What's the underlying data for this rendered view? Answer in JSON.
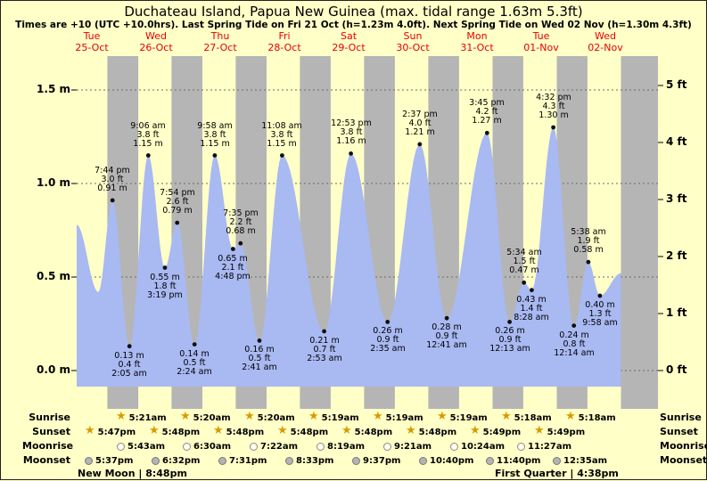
{
  "title": "Duchateau Island, Papua New Guinea (max. tidal range 1.63m 5.3ft)",
  "subtitle": "Times are +10 (UTC +10.0hrs). Last Spring Tide on Fri 21 Oct (h=1.23m 4.0ft). Next Spring Tide on Wed 02 Nov (h=1.30m 4.3ft)",
  "colors": {
    "page_bg": "#ffffc8",
    "night_band": "#b5b5b5",
    "tide_fill": "#a9b9f2",
    "day_label": "#e80000",
    "dot": "#101010",
    "star": "#d79b00"
  },
  "axes": {
    "left_unit": "m",
    "right_unit": "ft",
    "left_ticks": [
      {
        "label": "0.0 m",
        "value": 0
      },
      {
        "label": "0.5 m",
        "value": 0.5
      },
      {
        "label": "1.0 m",
        "value": 1.0
      },
      {
        "label": "1.5 m",
        "value": 1.5
      }
    ],
    "right_ticks": [
      {
        "label": "0 ft",
        "value_m": 0
      },
      {
        "label": "1 ft",
        "value_m": 0.3048
      },
      {
        "label": "2 ft",
        "value_m": 0.6096
      },
      {
        "label": "3 ft",
        "value_m": 0.9144
      },
      {
        "label": "4 ft",
        "value_m": 1.2192
      },
      {
        "label": "5 ft",
        "value_m": 1.524
      }
    ]
  },
  "days": [
    {
      "weekday": "Tue",
      "date": "25-Oct"
    },
    {
      "weekday": "Wed",
      "date": "26-Oct"
    },
    {
      "weekday": "Thu",
      "date": "27-Oct"
    },
    {
      "weekday": "Fri",
      "date": "28-Oct"
    },
    {
      "weekday": "Sat",
      "date": "29-Oct"
    },
    {
      "weekday": "Sun",
      "date": "30-Oct"
    },
    {
      "weekday": "Mon",
      "date": "31-Oct"
    },
    {
      "weekday": "Tue",
      "date": "01-Nov"
    },
    {
      "weekday": "Wed",
      "date": "02-Nov"
    }
  ],
  "chart_data": {
    "type": "area",
    "title": "Tide height curve for Duchateau Island",
    "x_axis": "time (days from 25-Oct 00:00, +10 UTC)",
    "y_range_m": [
      -0.2,
      1.68
    ],
    "y_left_ticks_m": [
      0,
      0.5,
      1.0,
      1.5
    ],
    "y_right_ticks_ft": [
      0,
      1,
      2,
      3,
      4,
      5
    ],
    "legend": "off",
    "grid": "horizontal-dotted",
    "night_bands": [
      [
        0.741,
        1.2229
      ],
      [
        1.7417,
        2.2222
      ],
      [
        2.7417,
        3.2222
      ],
      [
        3.7417,
        4.2215
      ],
      [
        4.7417,
        5.2215
      ],
      [
        5.7417,
        6.2215
      ],
      [
        6.7424,
        7.2208
      ],
      [
        7.7424,
        8.2208
      ],
      [
        8.7424,
        9.4
      ]
    ],
    "tides": [
      {
        "day": "25-Oct",
        "time": "7:44 pm",
        "t": 0.8222,
        "height_m": 0.91,
        "height_ft": 3.0,
        "type": "high"
      },
      {
        "day": "26-Oct",
        "time": "2:05 am",
        "t": 1.0868,
        "height_m": 0.13,
        "height_ft": 0.4,
        "type": "low"
      },
      {
        "day": "26-Oct",
        "time": "9:06 am",
        "t": 1.3792,
        "height_m": 1.15,
        "height_ft": 3.8,
        "type": "high"
      },
      {
        "day": "26-Oct",
        "time": "3:19 pm",
        "t": 1.6382,
        "height_m": 0.55,
        "height_ft": 1.8,
        "type": "low"
      },
      {
        "day": "26-Oct",
        "time": "7:54 pm",
        "t": 1.8292,
        "height_m": 0.79,
        "height_ft": 2.6,
        "type": "high"
      },
      {
        "day": "27-Oct",
        "time": "2:24 am",
        "t": 2.1,
        "height_m": 0.14,
        "height_ft": 0.5,
        "type": "low"
      },
      {
        "day": "27-Oct",
        "time": "9:58 am",
        "t": 2.4153,
        "height_m": 1.15,
        "height_ft": 3.8,
        "type": "high"
      },
      {
        "day": "27-Oct",
        "time": "4:48 pm",
        "t": 2.7,
        "height_m": 0.65,
        "height_ft": 2.1,
        "type": "low"
      },
      {
        "day": "27-Oct",
        "time": "7:35 pm",
        "t": 2.816,
        "height_m": 0.68,
        "height_ft": 2.2,
        "type": "high"
      },
      {
        "day": "28-Oct",
        "time": "2:41 am",
        "t": 3.1118,
        "height_m": 0.16,
        "height_ft": 0.5,
        "type": "low"
      },
      {
        "day": "28-Oct",
        "time": "11:08 am",
        "t": 3.4639,
        "height_m": 1.15,
        "height_ft": 3.8,
        "type": "high"
      },
      {
        "day": "29-Oct",
        "time": "2:53 am",
        "t": 4.1201,
        "height_m": 0.21,
        "height_ft": 0.7,
        "type": "low"
      },
      {
        "day": "29-Oct",
        "time": "12:53 pm",
        "t": 4.5368,
        "height_m": 1.16,
        "height_ft": 3.8,
        "type": "high"
      },
      {
        "day": "30-Oct",
        "time": "2:35 am",
        "t": 5.1076,
        "height_m": 0.26,
        "height_ft": 0.9,
        "type": "low"
      },
      {
        "day": "30-Oct",
        "time": "2:37 pm",
        "t": 5.609,
        "height_m": 1.21,
        "height_ft": 4.0,
        "type": "high"
      },
      {
        "day": "31-Oct",
        "time": "12:41 am",
        "t": 6.0285,
        "height_m": 0.28,
        "height_ft": 0.9,
        "type": "low"
      },
      {
        "day": "31-Oct",
        "time": "3:45 pm",
        "t": 6.6563,
        "height_m": 1.27,
        "height_ft": 4.2,
        "type": "high"
      },
      {
        "day": "01-Nov",
        "time": "12:13 am",
        "t": 7.009,
        "height_m": 0.26,
        "height_ft": 0.9,
        "type": "low"
      },
      {
        "day": "01-Nov",
        "time": "5:34 am",
        "t": 7.2319,
        "height_m": 0.47,
        "height_ft": 1.5,
        "type": "high"
      },
      {
        "day": "01-Nov",
        "time": "8:28 am",
        "t": 7.3528,
        "height_m": 0.43,
        "height_ft": 1.4,
        "type": "low"
      },
      {
        "day": "01-Nov",
        "time": "4:32 pm",
        "t": 7.6889,
        "height_m": 1.3,
        "height_ft": 4.3,
        "type": "high"
      },
      {
        "day": "02-Nov",
        "time": "12:14 am",
        "t": 8.0097,
        "height_m": 0.24,
        "height_ft": 0.8,
        "type": "low"
      },
      {
        "day": "02-Nov",
        "time": "5:38 am",
        "t": 8.2347,
        "height_m": 0.58,
        "height_ft": 1.9,
        "type": "high"
      },
      {
        "day": "02-Nov",
        "time": "9:58 am",
        "t": 8.4153,
        "height_m": 0.4,
        "height_ft": 1.3,
        "type": "low"
      }
    ],
    "estimated_edge_points": {
      "start": [
        {
          "t": 0.264,
          "h": 0.78
        },
        {
          "t": 0.6,
          "h": 0.42
        }
      ],
      "end": [
        {
          "t": 8.7424,
          "h": 0.52
        }
      ]
    }
  },
  "sun_moon": {
    "rows": [
      {
        "key": "sunrise",
        "label": "Sunrise",
        "icon": "star",
        "events": [
          {
            "time": "5:21am",
            "t": 1.2229
          },
          {
            "time": "5:20am",
            "t": 2.2222
          },
          {
            "time": "5:20am",
            "t": 3.2222
          },
          {
            "time": "5:19am",
            "t": 4.2215
          },
          {
            "time": "5:19am",
            "t": 5.2215
          },
          {
            "time": "5:19am",
            "t": 6.2215
          },
          {
            "time": "5:18am",
            "t": 7.2208
          },
          {
            "time": "5:18am",
            "t": 8.2208
          }
        ]
      },
      {
        "key": "sunset",
        "label": "Sunset",
        "icon": "star",
        "events": [
          {
            "time": "5:47pm",
            "t": 0.741
          },
          {
            "time": "5:48pm",
            "t": 1.7417
          },
          {
            "time": "5:48pm",
            "t": 2.7417
          },
          {
            "time": "5:48pm",
            "t": 3.7417
          },
          {
            "time": "5:48pm",
            "t": 4.7417
          },
          {
            "time": "5:48pm",
            "t": 5.7417
          },
          {
            "time": "5:49pm",
            "t": 6.7424
          },
          {
            "time": "5:49pm",
            "t": 7.7424
          }
        ]
      },
      {
        "key": "moonrise",
        "label": "Moonrise",
        "icon": "moon-light",
        "events": [
          {
            "time": "5:43am",
            "t": 1.2382
          },
          {
            "time": "6:30am",
            "t": 2.2708
          },
          {
            "time": "7:22am",
            "t": 3.3069
          },
          {
            "time": "8:19am",
            "t": 4.3465
          },
          {
            "time": "9:21am",
            "t": 5.3896
          },
          {
            "time": "10:24am",
            "t": 6.4333
          },
          {
            "time": "11:27am",
            "t": 7.4771
          }
        ]
      },
      {
        "key": "moonset",
        "label": "Moonset",
        "icon": "moon-dark",
        "events": [
          {
            "time": "5:37pm",
            "t": 0.734
          },
          {
            "time": "6:32pm",
            "t": 1.7722
          },
          {
            "time": "7:31pm",
            "t": 2.8132
          },
          {
            "time": "8:33pm",
            "t": 3.8563
          },
          {
            "time": "9:37pm",
            "t": 4.9007
          },
          {
            "time": "10:40pm",
            "t": 5.9444
          },
          {
            "time": "11:40pm",
            "t": 6.9861
          },
          {
            "time": "12:35am",
            "t": 8.0243
          }
        ]
      }
    ],
    "phases": [
      {
        "name": "New Moon",
        "time": "8:48pm",
        "t": 0.8667
      },
      {
        "name": "First Quarter",
        "time": "4:38pm",
        "t": 7.6931
      }
    ]
  }
}
